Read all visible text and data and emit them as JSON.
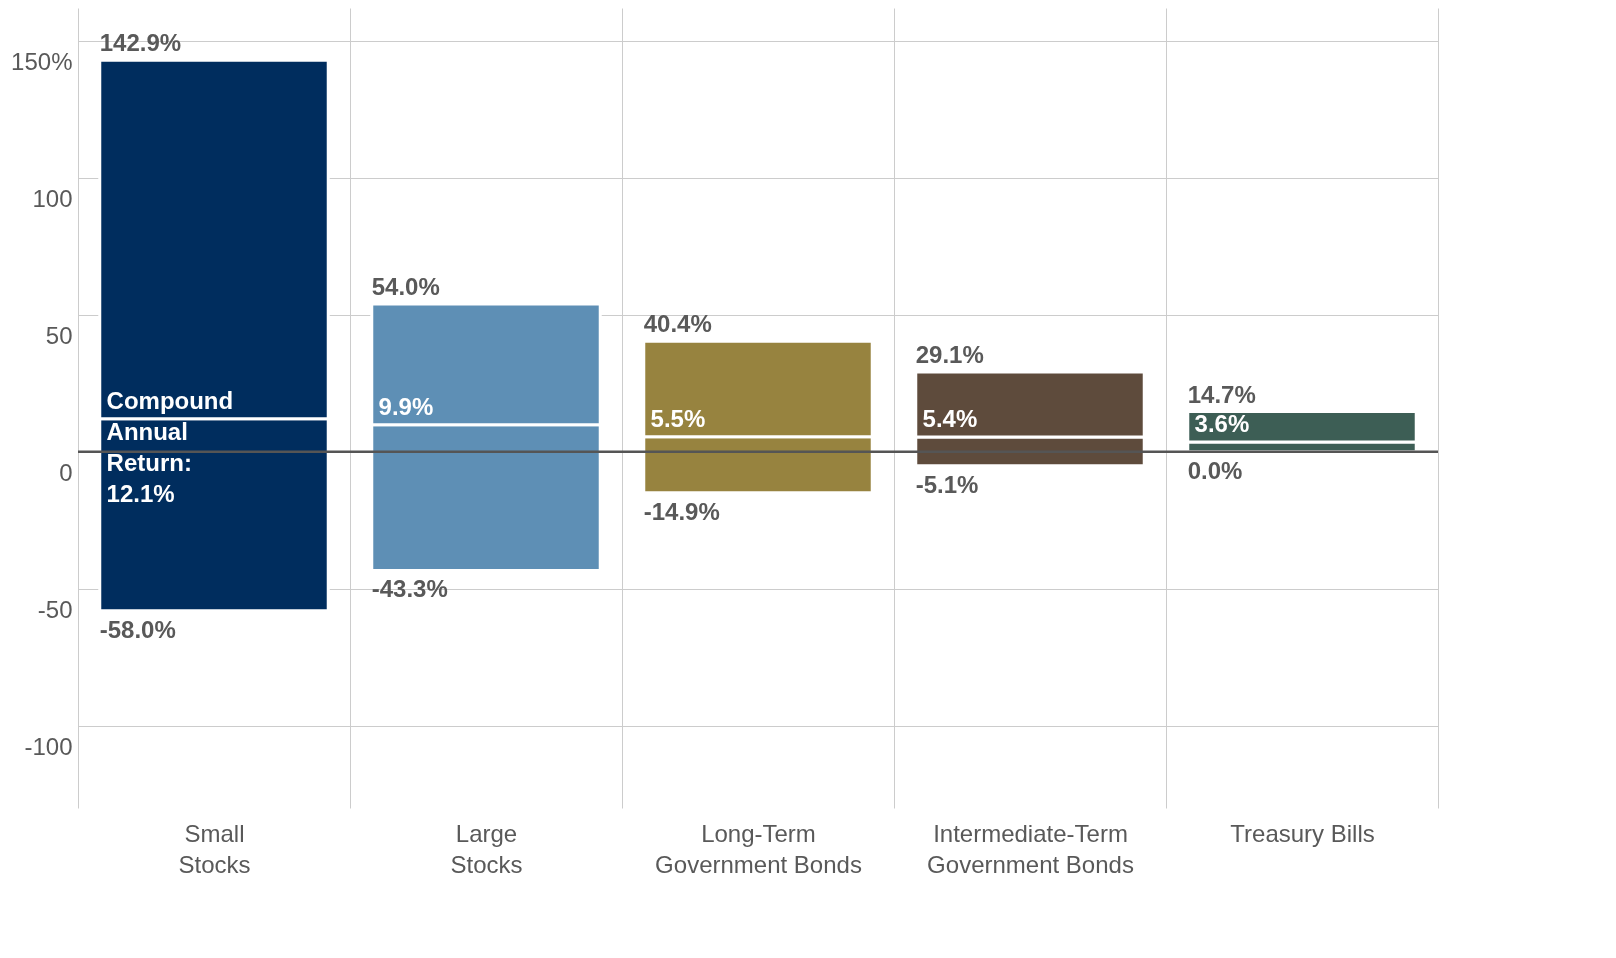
{
  "chart_data": {
    "type": "bar",
    "categories": [
      "Small\nStocks",
      "Large\nStocks",
      "Long-Term\nGovernment Bonds",
      "Intermediate-Term\nGovernment Bonds",
      "Treasury Bills"
    ],
    "series": [
      {
        "base": [
          -58.0,
          -43.3,
          -14.9,
          -5.1,
          0.0
        ],
        "values": [
          70.1,
          53.2,
          20.4,
          10.5,
          3.6
        ],
        "colors": [
          "#002d5e",
          "#5e8fb5",
          "#97833f",
          "#5e4b3c",
          "#3d5e55"
        ]
      },
      {
        "base": [
          12.1,
          9.9,
          5.5,
          5.4,
          3.6
        ],
        "values": [
          130.8,
          44.1,
          34.9,
          23.7,
          11.1
        ],
        "colors": [
          "#002d5e",
          "#5e8fb5",
          "#97833f",
          "#5e4b3c",
          "#3d5e55"
        ]
      }
    ],
    "annotations": [
      {
        "text": "142.9%",
        "x": "Small\nStocks",
        "y": 142.9
      },
      {
        "text": "Compound\nAnnual\nReturn:\n12.1%",
        "x": "Small\nStocks",
        "y": 12.1
      },
      {
        "text": "-58.0%",
        "x": "Small\nStocks",
        "y": -58.0
      },
      {
        "text": "54.0%",
        "x": "Large\nStocks",
        "y": 54.0
      },
      {
        "text": "9.9%",
        "x": "Large\nStocks",
        "y": 9.9
      },
      {
        "text": "-43.3%",
        "x": "Large\nStocks",
        "y": -43.3
      },
      {
        "text": "40.4%",
        "x": "Long-Term\nGovernment Bonds",
        "y": 40.4
      },
      {
        "text": "5.5%",
        "x": "Long-Term\nGovernment Bonds",
        "y": 5.5
      },
      {
        "text": "-14.9%",
        "x": "Long-Term\nGovernment Bonds",
        "y": -14.9
      },
      {
        "text": "29.1%",
        "x": "Intermediate-Term\nGovernment Bonds",
        "y": 29.1
      },
      {
        "text": "5.4%",
        "x": "Intermediate-Term\nGovernment Bonds",
        "y": 5.4
      },
      {
        "text": "-5.1%",
        "x": "Intermediate-Term\nGovernment Bonds",
        "y": -5.1
      },
      {
        "text": "14.7%",
        "x": "Treasury Bills",
        "y": 14.7
      },
      {
        "text": "3.6%",
        "x": "Treasury Bills",
        "y": 3.6
      },
      {
        "text": "0.0%",
        "x": "Treasury Bills",
        "y": 0.0
      }
    ],
    "ylim": [
      -130,
      162
    ],
    "yticks": [
      {
        "value": 150,
        "label": "150%"
      },
      100,
      50,
      0,
      -50,
      -100
    ],
    "ref_lines": [
      {
        "axis": "y",
        "value": 0,
        "color": "#555555"
      }
    ],
    "grid": true
  }
}
